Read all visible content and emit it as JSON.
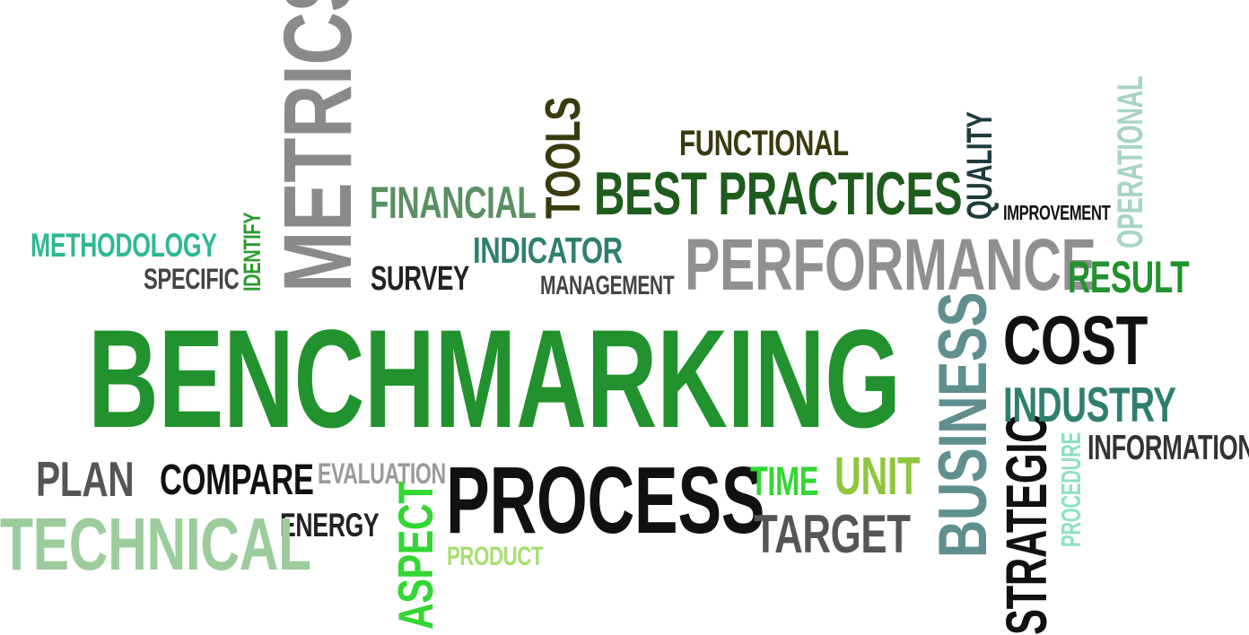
{
  "colors": {
    "dark_green": "#1e5c1e",
    "olive_dark": "#3a3a10",
    "green_main": "#22922e",
    "green_medium": "#3f8f52",
    "teal": "#2f7f6f",
    "gray": "#8a8a8a",
    "dark_gray": "#444444",
    "black": "#111111",
    "light_green": "#9ccc9c",
    "lime": "#33d633",
    "yellow_green": "#8ec63f",
    "steel": "#5f8f8f",
    "mint": "#a8dcd0"
  },
  "words": {
    "benchmarking": "BENCHMARKING",
    "metrics": "METRICS",
    "performance": "PERFORMANCE",
    "best_practices": "BEST PRACTICES",
    "functional": "FUNCTIONAL",
    "tools": "TOOLS",
    "financial": "FINANCIAL",
    "indicator": "INDICATOR",
    "management": "MANAGEMENT",
    "survey": "SURVEY",
    "specific": "SPECIFIC",
    "methodology": "METHODOLOGY",
    "identify": "IDENTIFY",
    "quality": "QUALITY",
    "improvement": "IMPROVEMENT",
    "operational": "OPERATIONAL",
    "result": "RESULT",
    "cost": "COST",
    "industry": "INDUSTRY",
    "information": "INFORMATION",
    "business": "BUSINESS",
    "strategic": "STRATEGIC",
    "procedure": "PROCEDURE",
    "plan": "PLAN",
    "compare": "COMPARE",
    "evaluation": "EVALUATION",
    "process": "PROCESS",
    "time": "TIME",
    "unit": "UNIT",
    "target": "TARGET",
    "technical": "TECHNICAL",
    "energy": "ENERGY",
    "aspect": "ASPECT",
    "product": "PRODUCT"
  }
}
